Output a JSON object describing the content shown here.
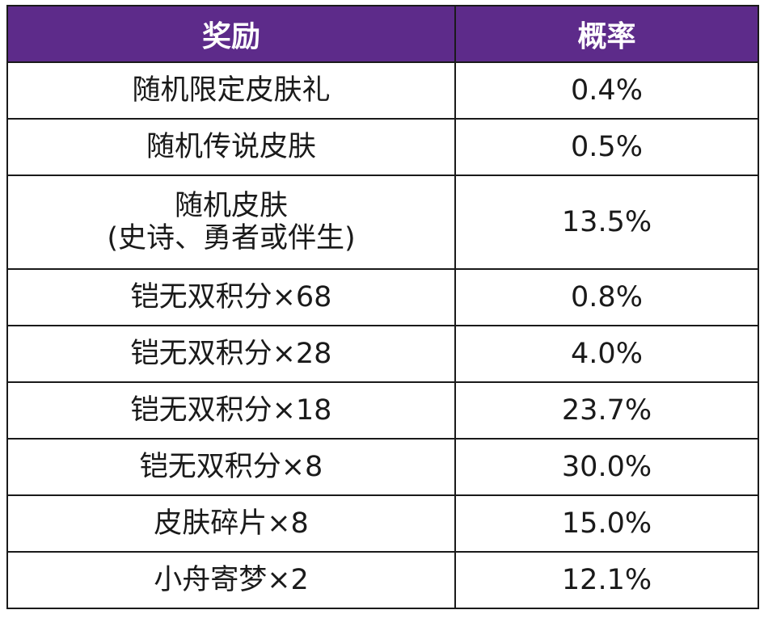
{
  "table": {
    "headers": {
      "reward": "奖励",
      "probability": "概率"
    },
    "rows": [
      {
        "reward": "随机限定皮肤礼",
        "probability": "0.4%"
      },
      {
        "reward": "随机传说皮肤",
        "probability": "0.5%"
      },
      {
        "reward": "随机皮肤",
        "reward_sub": "(史诗、勇者或伴生)",
        "probability": "13.5%"
      },
      {
        "reward": "铠无双积分×68",
        "probability": "0.8%"
      },
      {
        "reward": "铠无双积分×28",
        "probability": "4.0%"
      },
      {
        "reward": "铠无双积分×18",
        "probability": "23.7%"
      },
      {
        "reward": "铠无双积分×8",
        "probability": "30.0%"
      },
      {
        "reward": "皮肤碎片×8",
        "probability": "15.0%"
      },
      {
        "reward": "小舟寄梦×2",
        "probability": "12.1%"
      }
    ],
    "colors": {
      "header_bg": "#5d2b8a",
      "header_text": "#ffffff",
      "border": "#1a1a1a"
    }
  }
}
